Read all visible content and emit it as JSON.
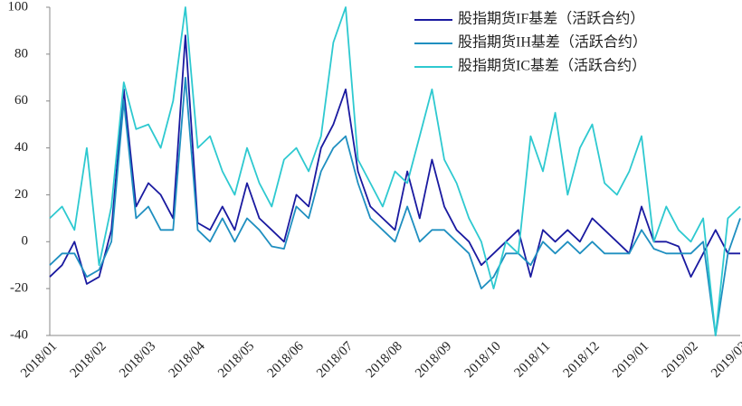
{
  "chart_data": {
    "type": "line",
    "x": [
      "2018/01",
      null,
      null,
      null,
      "2018/02",
      null,
      null,
      null,
      "2018/03",
      null,
      null,
      null,
      "2018/04",
      null,
      null,
      null,
      "2018/05",
      null,
      null,
      null,
      "2018/06",
      null,
      null,
      null,
      "2018/07",
      null,
      null,
      null,
      "2018/08",
      null,
      null,
      null,
      "2018/09",
      null,
      null,
      null,
      "2018/10",
      null,
      null,
      null,
      "2018/11",
      null,
      null,
      null,
      "2018/12",
      null,
      null,
      null,
      "2019/01",
      null,
      null,
      null,
      "2019/02",
      null,
      null,
      null,
      "2019/03"
    ],
    "series": [
      {
        "name": "股指期货IF基差（活跃合约）",
        "color": "#1a1aa0",
        "values": [
          -15,
          -10,
          0,
          -18,
          -15,
          5,
          65,
          15,
          25,
          20,
          10,
          88,
          8,
          5,
          15,
          5,
          25,
          10,
          5,
          0,
          20,
          15,
          40,
          50,
          65,
          30,
          15,
          10,
          5,
          30,
          10,
          35,
          15,
          5,
          0,
          -10,
          -5,
          0,
          5,
          -15,
          5,
          0,
          5,
          0,
          10,
          5,
          0,
          -5,
          15,
          0,
          0,
          -2,
          -15,
          -5,
          5,
          -5,
          -5
        ]
      },
      {
        "name": "股指期货IH基差（活跃合约）",
        "color": "#1f8fc0",
        "values": [
          -10,
          -5,
          -5,
          -15,
          -12,
          0,
          60,
          10,
          15,
          5,
          5,
          70,
          5,
          0,
          10,
          0,
          10,
          5,
          -2,
          -3,
          15,
          10,
          30,
          40,
          45,
          25,
          10,
          5,
          0,
          15,
          0,
          5,
          5,
          0,
          -5,
          -20,
          -15,
          -5,
          -5,
          -10,
          0,
          -5,
          0,
          -5,
          0,
          -5,
          -5,
          -5,
          5,
          -3,
          -5,
          -5,
          -5,
          0,
          -40,
          -5,
          10
        ]
      },
      {
        "name": "股指期货IC基差（活跃合约）",
        "color": "#2ec9d0",
        "values": [
          10,
          15,
          5,
          40,
          -10,
          15,
          68,
          48,
          50,
          40,
          60,
          100,
          40,
          45,
          30,
          20,
          40,
          25,
          15,
          35,
          40,
          30,
          45,
          85,
          100,
          35,
          25,
          15,
          30,
          25,
          45,
          65,
          35,
          25,
          10,
          0,
          -20,
          0,
          -5,
          45,
          30,
          55,
          20,
          40,
          50,
          25,
          20,
          30,
          45,
          0,
          15,
          5,
          0,
          10,
          -40,
          10,
          15
        ]
      }
    ],
    "ylim": [
      -40,
      100
    ],
    "yticks": [
      -40,
      -20,
      0,
      20,
      40,
      60,
      80,
      100
    ],
    "legend": "upper right"
  }
}
